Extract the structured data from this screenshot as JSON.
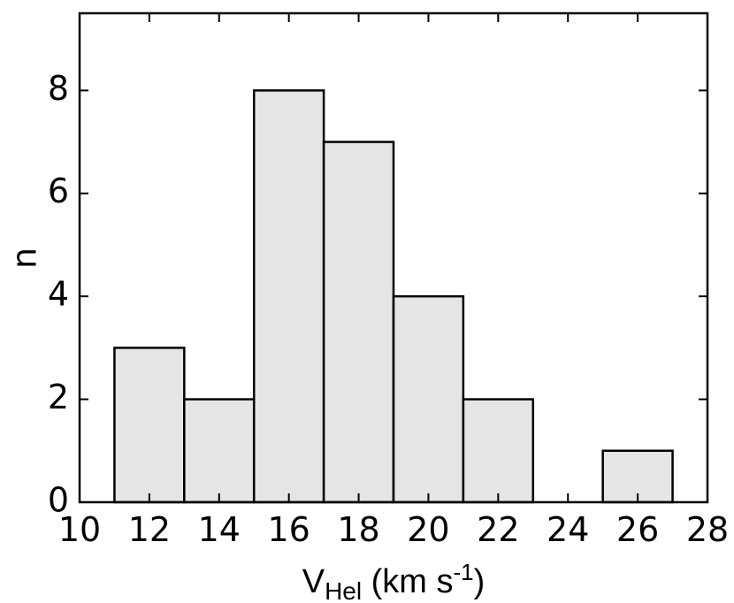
{
  "chart_data": {
    "type": "histogram",
    "bins": [
      11,
      13,
      15,
      17,
      19,
      21,
      23,
      25,
      27
    ],
    "values": [
      3,
      2,
      8,
      7,
      4,
      2,
      0,
      1
    ],
    "color": "#e5e5e5",
    "xlim": [
      10,
      28
    ],
    "xticks": [
      10,
      12,
      14,
      16,
      18,
      20,
      22,
      24,
      26,
      28
    ],
    "ylim": [
      0,
      9.5
    ],
    "yticks": [
      0,
      2,
      4,
      6,
      8
    ],
    "ylabel": "n",
    "xlabel_parts": [
      "V",
      "Hel",
      " (km s",
      "-1",
      ")"
    ]
  }
}
